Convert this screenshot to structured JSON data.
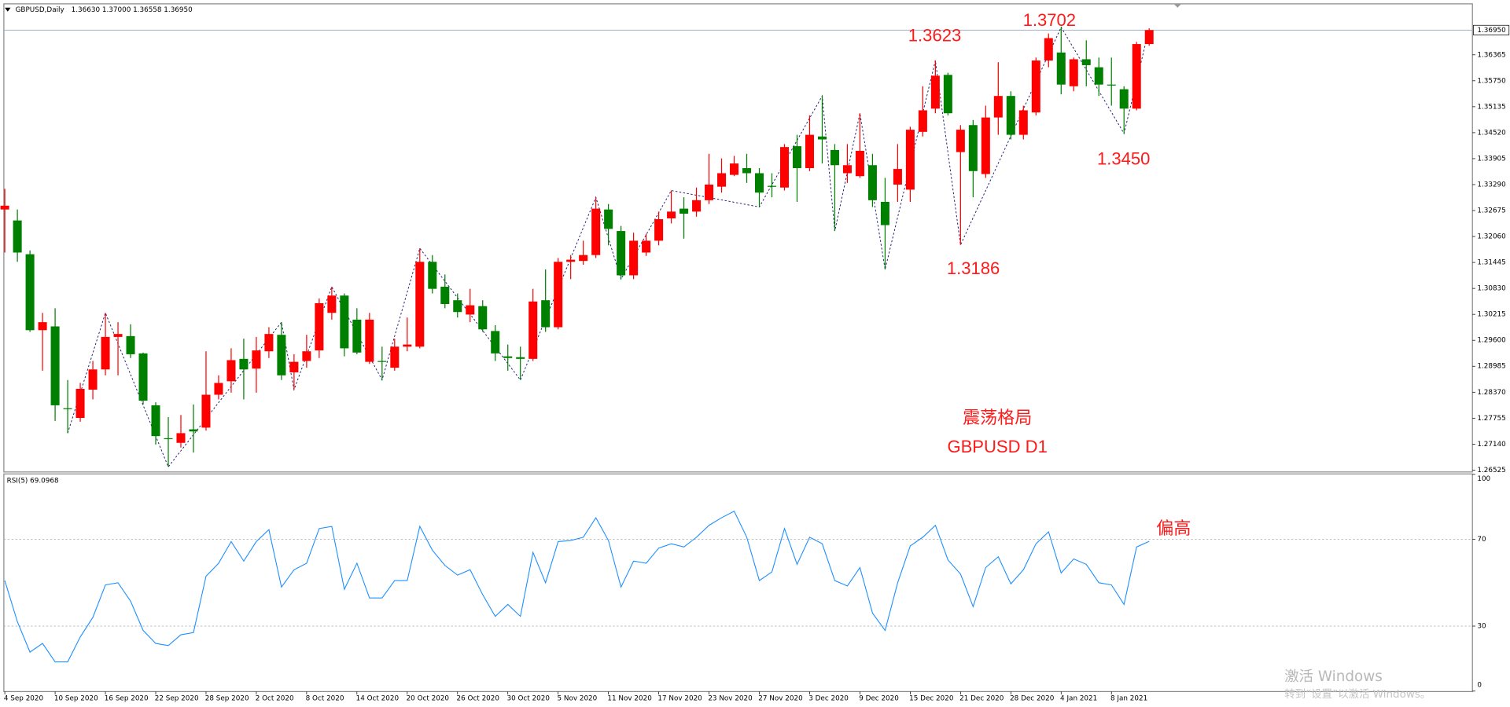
{
  "chart_data": [
    {
      "type": "candlestick",
      "title": "GBPUSD,Daily",
      "title_values": [
        "1.36630",
        "1.37000",
        "1.36558",
        "1.36950"
      ],
      "categories": [
        "4 Sep 2020",
        null,
        null,
        null,
        "10 Sep 2020",
        null,
        null,
        null,
        "16 Sep 2020",
        null,
        null,
        null,
        "22 Sep 2020",
        null,
        null,
        null,
        "28 Sep 2020",
        null,
        null,
        null,
        "2 Oct 2020",
        null,
        null,
        null,
        "8 Oct 2020",
        null,
        null,
        null,
        "14 Oct 2020",
        null,
        null,
        null,
        "20 Oct 2020",
        null,
        null,
        null,
        "26 Oct 2020",
        null,
        null,
        null,
        "30 Oct 2020",
        null,
        null,
        null,
        "5 Nov 2020",
        null,
        null,
        null,
        "11 Nov 2020",
        null,
        null,
        null,
        "17 Nov 2020",
        null,
        null,
        null,
        "23 Nov 2020",
        null,
        null,
        null,
        "27 Nov 2020",
        null,
        null,
        null,
        "3 Dec 2020",
        null,
        null,
        null,
        "9 Dec 2020",
        null,
        null,
        null,
        "15 Dec 2020",
        null,
        null,
        null,
        "21 Dec 2020",
        null,
        null,
        null,
        "28 Dec 2020",
        null,
        null,
        null,
        "4 Jan 2021",
        null,
        null,
        null,
        "8 Jan 2021",
        null,
        null,
        null
      ],
      "open": [
        1.327,
        1.3244,
        1.3164,
        1.2984,
        1.2993,
        1.2799,
        1.2776,
        1.2843,
        1.2891,
        1.2968,
        1.297,
        1.2929,
        1.2806,
        1.2728,
        1.2717,
        1.2749,
        1.2753,
        1.2831,
        1.2863,
        1.2916,
        1.2893,
        1.2934,
        1.2973,
        1.2884,
        1.2911,
        1.2936,
        1.3025,
        1.3066,
        1.3009,
        1.2909,
        1.2911,
        1.2895,
        1.2945,
        1.2945,
        1.3146,
        1.3087,
        1.3055,
        1.3021,
        1.3041,
        1.2982,
        1.2922,
        1.292,
        1.2916,
        1.3055,
        1.2991,
        1.3146,
        1.3148,
        1.3162,
        1.327,
        1.3219,
        1.3114,
        1.3168,
        1.3196,
        1.3249,
        1.3272,
        1.3265,
        1.3292,
        1.3324,
        1.3352,
        1.3368,
        1.3356,
        1.3326,
        1.3322,
        1.342,
        1.3368,
        1.3443,
        1.3411,
        1.3356,
        1.3349,
        1.3375,
        1.3288,
        1.3329,
        1.3317,
        1.3454,
        1.3509,
        1.3589,
        1.3406,
        1.347,
        1.3354,
        1.3488,
        1.3539,
        1.3447,
        1.35,
        1.3623,
        1.3642,
        1.3562,
        1.3626,
        1.3607,
        1.3566,
        1.3555,
        1.3509,
        1.3662
      ],
      "high": [
        1.3319,
        1.327,
        1.3173,
        1.3025,
        1.3036,
        1.2866,
        1.2859,
        1.2911,
        1.3025,
        1.3003,
        1.2998,
        1.2931,
        1.2813,
        1.2778,
        1.2783,
        1.2808,
        1.2934,
        1.2877,
        1.2941,
        1.2964,
        1.2968,
        1.2991,
        1.3003,
        1.2927,
        1.2973,
        1.3059,
        1.3087,
        1.3071,
        1.3036,
        1.3025,
        1.2945,
        1.2964,
        1.3014,
        1.3178,
        1.3162,
        1.3116,
        1.3071,
        1.3082,
        1.3055,
        1.2996,
        1.295,
        1.2945,
        1.3082,
        1.3128,
        1.3155,
        1.3162,
        1.3196,
        1.3299,
        1.3283,
        1.3231,
        1.3215,
        1.3212,
        1.3265,
        1.3315,
        1.3299,
        1.3322,
        1.3402,
        1.3391,
        1.3397,
        1.3402,
        1.3368,
        1.3356,
        1.3425,
        1.3447,
        1.3493,
        1.3539,
        1.3425,
        1.3425,
        1.3498,
        1.3402,
        1.3345,
        1.3425,
        1.3466,
        1.3562,
        1.3623,
        1.3594,
        1.347,
        1.3482,
        1.3516,
        1.3619,
        1.355,
        1.3516,
        1.363,
        1.3687,
        1.3702,
        1.363,
        1.3671,
        1.363,
        1.363,
        1.3562,
        1.3667,
        1.3699
      ],
      "low": [
        1.3168,
        1.3146,
        1.298,
        1.2888,
        1.2769,
        1.274,
        1.2767,
        1.282,
        1.2877,
        1.2877,
        1.2918,
        1.2808,
        1.2713,
        1.266,
        1.2706,
        1.2694,
        1.2746,
        1.282,
        1.2836,
        1.282,
        1.2836,
        1.2918,
        1.2866,
        1.2843,
        1.2895,
        1.2918,
        1.3009,
        1.2922,
        1.2927,
        1.2904,
        1.2866,
        1.2888,
        1.2934,
        1.2941,
        1.3071,
        1.3036,
        1.3014,
        1.3003,
        1.298,
        1.2911,
        1.2888,
        1.2866,
        1.2911,
        1.298,
        1.2986,
        1.3105,
        1.3139,
        1.3155,
        1.3185,
        1.3105,
        1.3105,
        1.316,
        1.3185,
        1.3237,
        1.3201,
        1.3253,
        1.3283,
        1.331,
        1.3349,
        1.3333,
        1.3276,
        1.3299,
        1.3315,
        1.3288,
        1.3361,
        1.3379,
        1.3219,
        1.3333,
        1.3345,
        1.3276,
        1.3128,
        1.3288,
        1.3288,
        1.3443,
        1.3498,
        1.3493,
        1.3186,
        1.3299,
        1.3345,
        1.3447,
        1.3436,
        1.3436,
        1.3493,
        1.3607,
        1.3543,
        1.355,
        1.3562,
        1.3539,
        1.3516,
        1.345,
        1.3505,
        1.3658
      ],
      "close": [
        1.3279,
        1.3168,
        1.2984,
        1.3003,
        1.2806,
        1.2797,
        1.2845,
        1.2891,
        1.2968,
        1.2975,
        1.2927,
        1.2817,
        1.2733,
        1.2726,
        1.274,
        1.2744,
        1.2831,
        1.2859,
        1.2913,
        1.2891,
        1.2936,
        1.2975,
        1.2877,
        1.2909,
        1.2934,
        1.3048,
        1.3066,
        1.2941,
        1.2931,
        1.3009,
        1.2909,
        1.2945,
        1.295,
        1.3146,
        1.3082,
        1.3046,
        1.3027,
        1.3043,
        1.2986,
        1.2929,
        1.2918,
        1.2916,
        1.3052,
        1.2991,
        1.3146,
        1.3151,
        1.3162,
        1.3272,
        1.3224,
        1.3114,
        1.3196,
        1.3196,
        1.3247,
        1.3265,
        1.326,
        1.3292,
        1.3329,
        1.3356,
        1.3379,
        1.3356,
        1.331,
        1.3324,
        1.3418,
        1.3368,
        1.3447,
        1.3436,
        1.3375,
        1.3375,
        1.3409,
        1.3292,
        1.3233,
        1.3366,
        1.3459,
        1.3505,
        1.3587,
        1.3498,
        1.3459,
        1.3361,
        1.3488,
        1.3539,
        1.3447,
        1.3505,
        1.3623,
        1.3676,
        1.3566,
        1.3626,
        1.3612,
        1.3566,
        1.3564,
        1.3509,
        1.3662,
        1.3695
      ],
      "up_color": "#ff0000",
      "down_color": "#008000",
      "ylim": [
        1.2648,
        1.3755
      ],
      "yticks": [
        1.26525,
        {
          "value": 1.2714,
          "label": "1.27140"
        },
        1.27755,
        {
          "value": 1.2837,
          "label": "1.28370"
        },
        1.28985,
        {
          "value": 1.296,
          "label": "1.29600"
        },
        1.30215,
        {
          "value": 1.3083,
          "label": "1.30830"
        },
        1.31445,
        {
          "value": 1.3206,
          "label": "1.32060"
        },
        1.32675,
        {
          "value": 1.3329,
          "label": "1.33290"
        },
        1.33905,
        {
          "value": 1.3452,
          "label": "1.34520"
        },
        1.35135,
        {
          "value": 1.3575,
          "label": "1.35750"
        },
        1.36365
      ],
      "current_price": {
        "value": 1.3695,
        "label": "1.36950"
      },
      "zigzag": {
        "color": "#22227a",
        "x": [
          5,
          8,
          13,
          22,
          23,
          26,
          30,
          33,
          41,
          47,
          49,
          53,
          60,
          65,
          66,
          68,
          70,
          74,
          76,
          84,
          89,
          91
        ],
        "values": [
          1.274,
          1.3025,
          1.266,
          1.3003,
          1.2843,
          1.3087,
          1.2866,
          1.3178,
          1.2866,
          1.3299,
          1.3105,
          1.3315,
          1.3276,
          1.3539,
          1.3219,
          1.3498,
          1.3128,
          1.3623,
          1.3186,
          1.3702,
          1.345,
          1.3699
        ]
      },
      "annotations": [
        "1.3623",
        "1.3702",
        "1.3450",
        "1.3186",
        "震荡格局",
        "GBPUSD D1"
      ]
    },
    {
      "type": "line",
      "title": "RSI(5) 69.0968",
      "color": "#1e90ff",
      "values": [
        51,
        32,
        18,
        22,
        13.5,
        13.5,
        25,
        34,
        49,
        50,
        41.5,
        28,
        22,
        21,
        26,
        27,
        53,
        59,
        69,
        60,
        69,
        74.5,
        48,
        56,
        59,
        75,
        76,
        47,
        59,
        43,
        43,
        51,
        51,
        76,
        65,
        58,
        53.5,
        56,
        44.5,
        34.5,
        40,
        34.5,
        64,
        50,
        69,
        69.5,
        71,
        80,
        69.5,
        48,
        60,
        59,
        66,
        68,
        66.5,
        71,
        76.5,
        80,
        83,
        71,
        51,
        55,
        75,
        58.5,
        71,
        68,
        51,
        48.5,
        57,
        36,
        28,
        50,
        67,
        71,
        76.5,
        60.5,
        54,
        39,
        57,
        62,
        49.5,
        56,
        68,
        73.5,
        54.5,
        61,
        58.5,
        50,
        49,
        40,
        66.5,
        69.1
      ],
      "ylim": [
        0,
        100
      ],
      "yticks": [
        0,
        30,
        70,
        100
      ],
      "levels": [
        30,
        70
      ],
      "annotation": "偏高"
    }
  ],
  "watermark": {
    "line1": "激活 Windows",
    "line2": "转到“设置”以激活 Windows。"
  }
}
